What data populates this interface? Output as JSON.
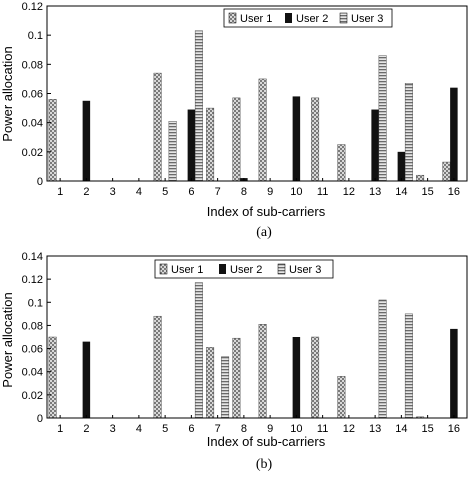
{
  "colors": {
    "user1": "#bdbdbd",
    "user2": "#111111",
    "user3": "#8c8c8c",
    "axis": "#000000"
  },
  "chart_data": [
    {
      "type": "bar",
      "caption": "(a)",
      "xlabel": "Index of sub-carriers",
      "ylabel": "Power allocation",
      "ylim": [
        0,
        0.12
      ],
      "yticks": [
        0,
        0.02,
        0.04,
        0.06,
        0.08,
        0.1,
        0.12
      ],
      "ytick_labels": [
        "0",
        "0.02",
        "0.04",
        "0.06",
        "0.08",
        "0.1",
        "0.12"
      ],
      "categories": [
        "1",
        "2",
        "3",
        "4",
        "5",
        "6",
        "7",
        "8",
        "9",
        "10",
        "11",
        "12",
        "13",
        "14",
        "15",
        "16"
      ],
      "legend_position": "top-right",
      "grid": false,
      "series": [
        {
          "name": "User 1",
          "values": [
            0.056,
            0,
            0,
            0,
            0.074,
            0,
            0.05,
            0.057,
            0.07,
            0,
            0.057,
            0.025,
            0,
            0,
            0.004,
            0.013
          ]
        },
        {
          "name": "User 2",
          "values": [
            0,
            0.055,
            0,
            0,
            0,
            0.049,
            0,
            0.002,
            0,
            0.058,
            0,
            0,
            0.049,
            0.02,
            0,
            0.064
          ]
        },
        {
          "name": "User 3",
          "values": [
            0,
            0,
            0,
            0,
            0.041,
            0.103,
            0,
            0,
            0,
            0,
            0,
            0,
            0.086,
            0.067,
            0,
            0
          ]
        }
      ]
    },
    {
      "type": "bar",
      "caption": "(b)",
      "xlabel": "Index of sub-carriers",
      "ylabel": "Power allocation",
      "ylim": [
        0,
        0.14
      ],
      "yticks": [
        0,
        0.02,
        0.04,
        0.06,
        0.08,
        0.1,
        0.12,
        0.14
      ],
      "ytick_labels": [
        "0",
        "0.02",
        "0.04",
        "0.06",
        "0.08",
        "0.1",
        "0.12",
        "0.14"
      ],
      "categories": [
        "1",
        "2",
        "3",
        "4",
        "5",
        "6",
        "7",
        "8",
        "9",
        "10",
        "11",
        "12",
        "13",
        "14",
        "15",
        "16"
      ],
      "legend_position": "top-center",
      "grid": false,
      "series": [
        {
          "name": "User 1",
          "values": [
            0.07,
            0,
            0,
            0,
            0.088,
            0,
            0.061,
            0.069,
            0.081,
            0,
            0.07,
            0.036,
            0,
            0,
            0.001,
            0
          ]
        },
        {
          "name": "User 2",
          "values": [
            0,
            0.066,
            0,
            0,
            0,
            0,
            0,
            0,
            0,
            0.07,
            0,
            0,
            0,
            0,
            0,
            0.077
          ]
        },
        {
          "name": "User 3",
          "values": [
            0,
            0,
            0,
            0,
            0,
            0.117,
            0.053,
            0,
            0,
            0,
            0,
            0,
            0.102,
            0.09,
            0,
            0
          ]
        }
      ]
    }
  ]
}
